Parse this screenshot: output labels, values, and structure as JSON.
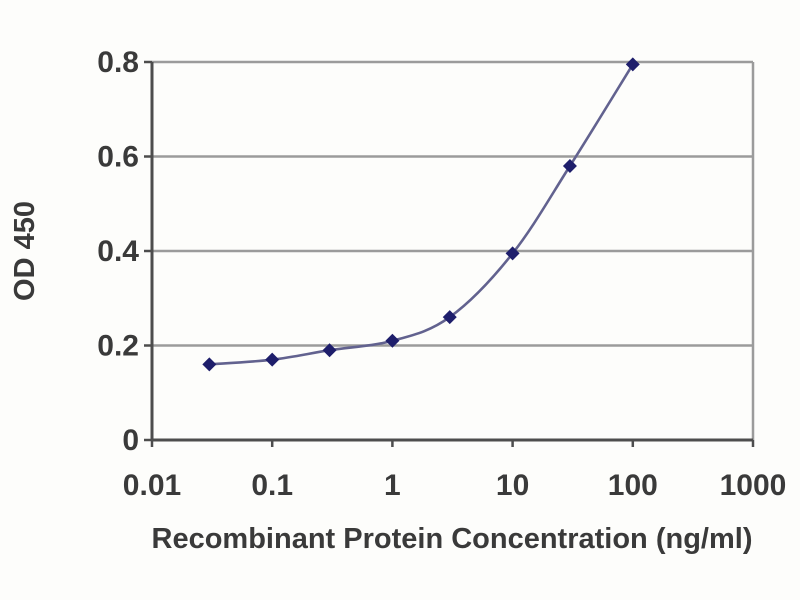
{
  "chart_data": {
    "type": "line",
    "title": "",
    "xlabel": "Recombinant Protein Concentration (ng/ml)",
    "ylabel": "OD 450",
    "x_scale": "log",
    "xlim": [
      0.01,
      1000
    ],
    "ylim": [
      0,
      0.8
    ],
    "x_ticks": [
      0.01,
      0.1,
      1,
      10,
      100,
      1000
    ],
    "x_tick_labels": [
      "0.01",
      "0.1",
      "1",
      "10",
      "100",
      "1000"
    ],
    "y_ticks": [
      0,
      0.2,
      0.4,
      0.6,
      0.8
    ],
    "y_tick_labels": [
      "0",
      "0.2",
      "0.4",
      "0.6",
      "0.8"
    ],
    "grid": "horizontal",
    "legend": "none",
    "series": [
      {
        "name": "OD 450",
        "marker": "diamond",
        "x": [
          0.03,
          0.1,
          0.3,
          1,
          3,
          10,
          30,
          100
        ],
        "y": [
          0.16,
          0.17,
          0.19,
          0.21,
          0.26,
          0.395,
          0.58,
          0.795
        ]
      }
    ],
    "colors": {
      "line": "#62628f",
      "marker": "#1e1e6b",
      "grid": "#9b9b9b",
      "axis": "#4d4d4d",
      "text": "#3a3a3a",
      "background": "#fdfdfb"
    }
  }
}
